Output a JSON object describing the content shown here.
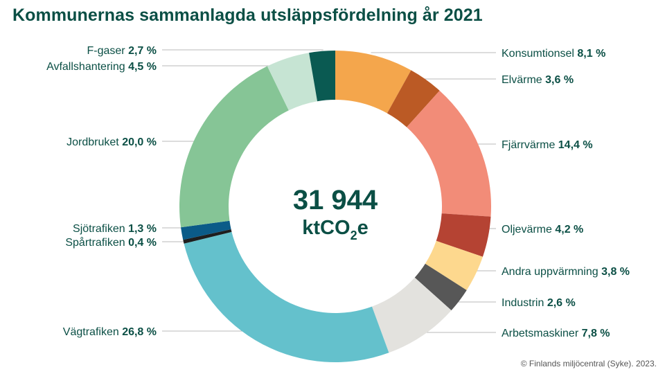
{
  "title": "Kommunernas sammanlagda utsläppsfördelning år 2021",
  "center": {
    "total": "31 944",
    "unit_main": "ktCO",
    "unit_sub": "2",
    "unit_tail": "e"
  },
  "source": "© Finlands miljöcentral (Syke). 2023.",
  "chart_data": {
    "type": "pie",
    "donut": true,
    "total_label": "31 944",
    "unit": "ktCO2e",
    "slices": [
      {
        "name": "Konsumtionsel",
        "value": 8.1,
        "pct_label": "8,1 %",
        "color": "#f4a64c"
      },
      {
        "name": "Elvärme",
        "value": 3.6,
        "pct_label": "3,6 %",
        "color": "#bb5a25"
      },
      {
        "name": "Fjärrvärme",
        "value": 14.4,
        "pct_label": "14,4 %",
        "color": "#f28c78"
      },
      {
        "name": "Oljevärme",
        "value": 4.2,
        "pct_label": "4,2 %",
        "color": "#b54333"
      },
      {
        "name": "Andra uppvärmning",
        "value": 3.8,
        "pct_label": "3,8 %",
        "color": "#fdd88e"
      },
      {
        "name": "Industrin",
        "value": 2.6,
        "pct_label": "2,6 %",
        "color": "#575757"
      },
      {
        "name": "Arbetsmaskiner",
        "value": 7.8,
        "pct_label": "7,8 %",
        "color": "#e3e2de"
      },
      {
        "name": "Vägtrafiken",
        "value": 26.8,
        "pct_label": "26,8 %",
        "color": "#64c1cc"
      },
      {
        "name": "Spårtrafiken",
        "value": 0.4,
        "pct_label": "0,4 %",
        "color": "#1e1e1e"
      },
      {
        "name": "Sjötrafiken",
        "value": 1.3,
        "pct_label": "1,3 %",
        "color": "#0b5b88"
      },
      {
        "name": "Jordbruket",
        "value": 20.0,
        "pct_label": "20,0 %",
        "color": "#86c596"
      },
      {
        "name": "Avfallshantering",
        "value": 4.5,
        "pct_label": "4,5 %",
        "color": "#c6e4d3"
      },
      {
        "name": "F-gaser",
        "value": 2.7,
        "pct_label": "2,7 %",
        "color": "#0a5a52"
      }
    ]
  }
}
